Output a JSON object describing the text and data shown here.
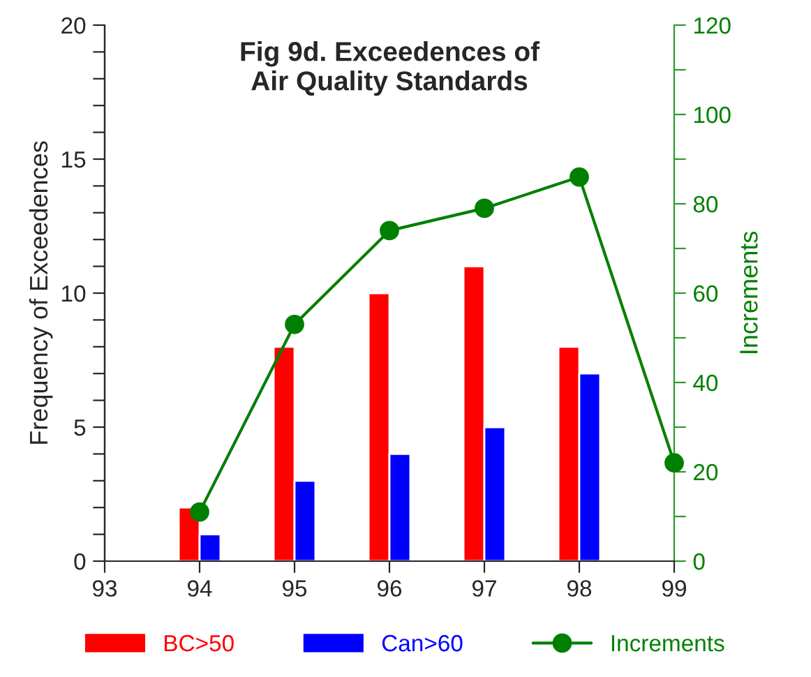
{
  "chart_data": {
    "type": "bar",
    "title": "Fig 9d. Exceedences of\nAir Quality Standards",
    "ylabel": "Frequency of Exceedences",
    "y2label": "Increments",
    "x": [
      94,
      95,
      96,
      97,
      98
    ],
    "series": [
      {
        "name": "BC>50",
        "color": "#ff0000",
        "values": [
          2,
          8,
          10,
          11,
          8
        ]
      },
      {
        "name": "Can>60",
        "color": "#0000ff",
        "values": [
          1,
          3,
          4,
          5,
          7
        ]
      },
      {
        "name": "Increments",
        "color": "#008000",
        "type": "line",
        "axis": "y2",
        "marker": "circle",
        "x": [
          94,
          95,
          96,
          97,
          98,
          99
        ],
        "values": [
          11,
          53,
          74,
          79,
          86,
          22
        ]
      }
    ],
    "xlim": [
      93,
      99
    ],
    "xticks": [
      93,
      94,
      95,
      96,
      97,
      98,
      99
    ],
    "ylim": [
      0,
      20
    ],
    "yticks": [
      0,
      {
        "value": 1,
        "label": null
      },
      {
        "value": 2,
        "label": null
      },
      {
        "value": 3,
        "label": null
      },
      {
        "value": 4,
        "label": null
      },
      5,
      {
        "value": 6,
        "label": null
      },
      {
        "value": 7,
        "label": null
      },
      {
        "value": 8,
        "label": null
      },
      {
        "value": 9,
        "label": null
      },
      10,
      {
        "value": 11,
        "label": null
      },
      {
        "value": 12,
        "label": null
      },
      {
        "value": 13,
        "label": null
      },
      {
        "value": 14,
        "label": null
      },
      15,
      {
        "value": 16,
        "label": null
      },
      {
        "value": 17,
        "label": null
      },
      {
        "value": 18,
        "label": null
      },
      {
        "value": 19,
        "label": null
      },
      20
    ],
    "y2lim": [
      0,
      120
    ],
    "y2ticks": [
      0,
      {
        "value": 10,
        "label": null
      },
      20,
      {
        "value": 30,
        "label": null
      },
      40,
      {
        "value": 50,
        "label": null
      },
      60,
      {
        "value": 70,
        "label": null
      },
      80,
      {
        "value": 90,
        "label": null
      },
      100,
      {
        "value": 110,
        "label": null
      },
      120
    ],
    "grid": false,
    "legend": "bottom"
  }
}
